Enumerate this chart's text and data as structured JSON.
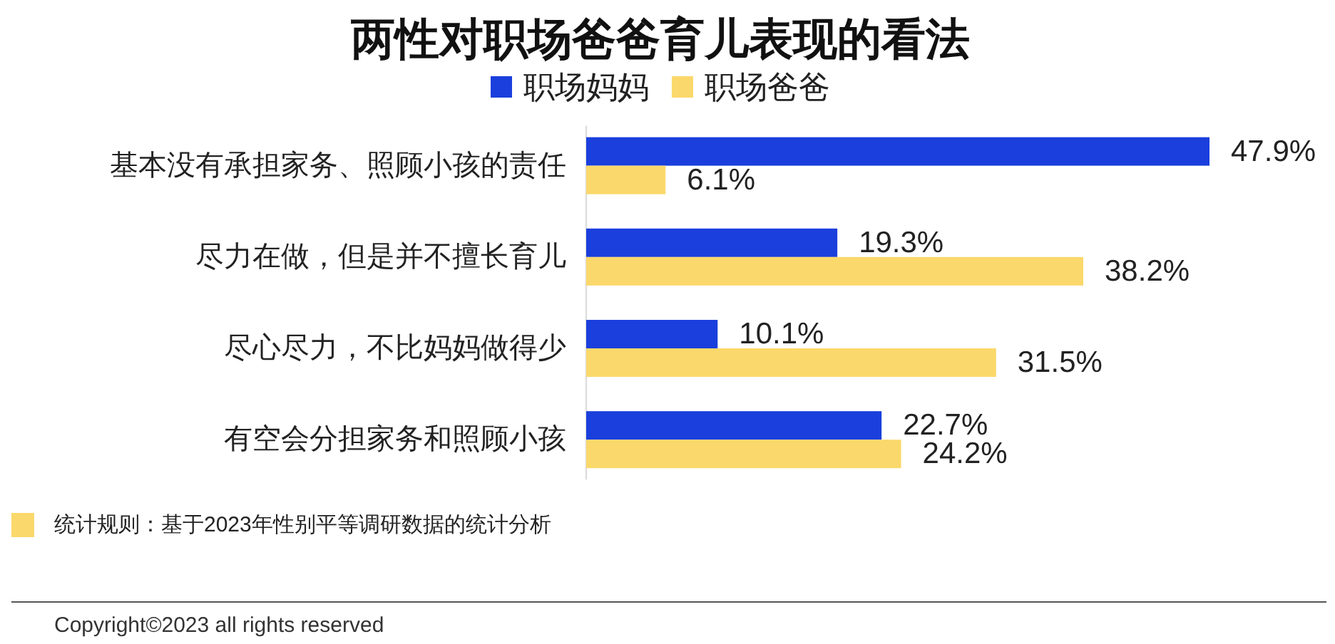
{
  "chart_data": {
    "type": "bar",
    "orientation": "horizontal",
    "title": "两性对职场爸爸育儿表现的看法",
    "categories": [
      "基本没有承担家务、照顾小孩的责任",
      "尽力在做，但是并不擅长育儿",
      "尽心尽力，不比妈妈做得少",
      "有空会分担家务和照顾小孩"
    ],
    "series": [
      {
        "name": "职场妈妈",
        "color": "#1a3fdc",
        "values": [
          47.9,
          19.3,
          10.1,
          22.7
        ],
        "value_labels": [
          "47.9%",
          "19.3%",
          "10.1%",
          "22.7%"
        ]
      },
      {
        "name": "职场爸爸",
        "color": "#fbd86b",
        "values": [
          6.1,
          38.2,
          31.5,
          24.2
        ],
        "value_labels": [
          "6.1%",
          "38.2%",
          "31.5%",
          "24.2%"
        ]
      }
    ],
    "legend": "top",
    "annotations": [
      "统计规则：基于2023年性别平等调研数据的统计分析",
      "Copyright©2023 all rights reserved"
    ]
  }
}
